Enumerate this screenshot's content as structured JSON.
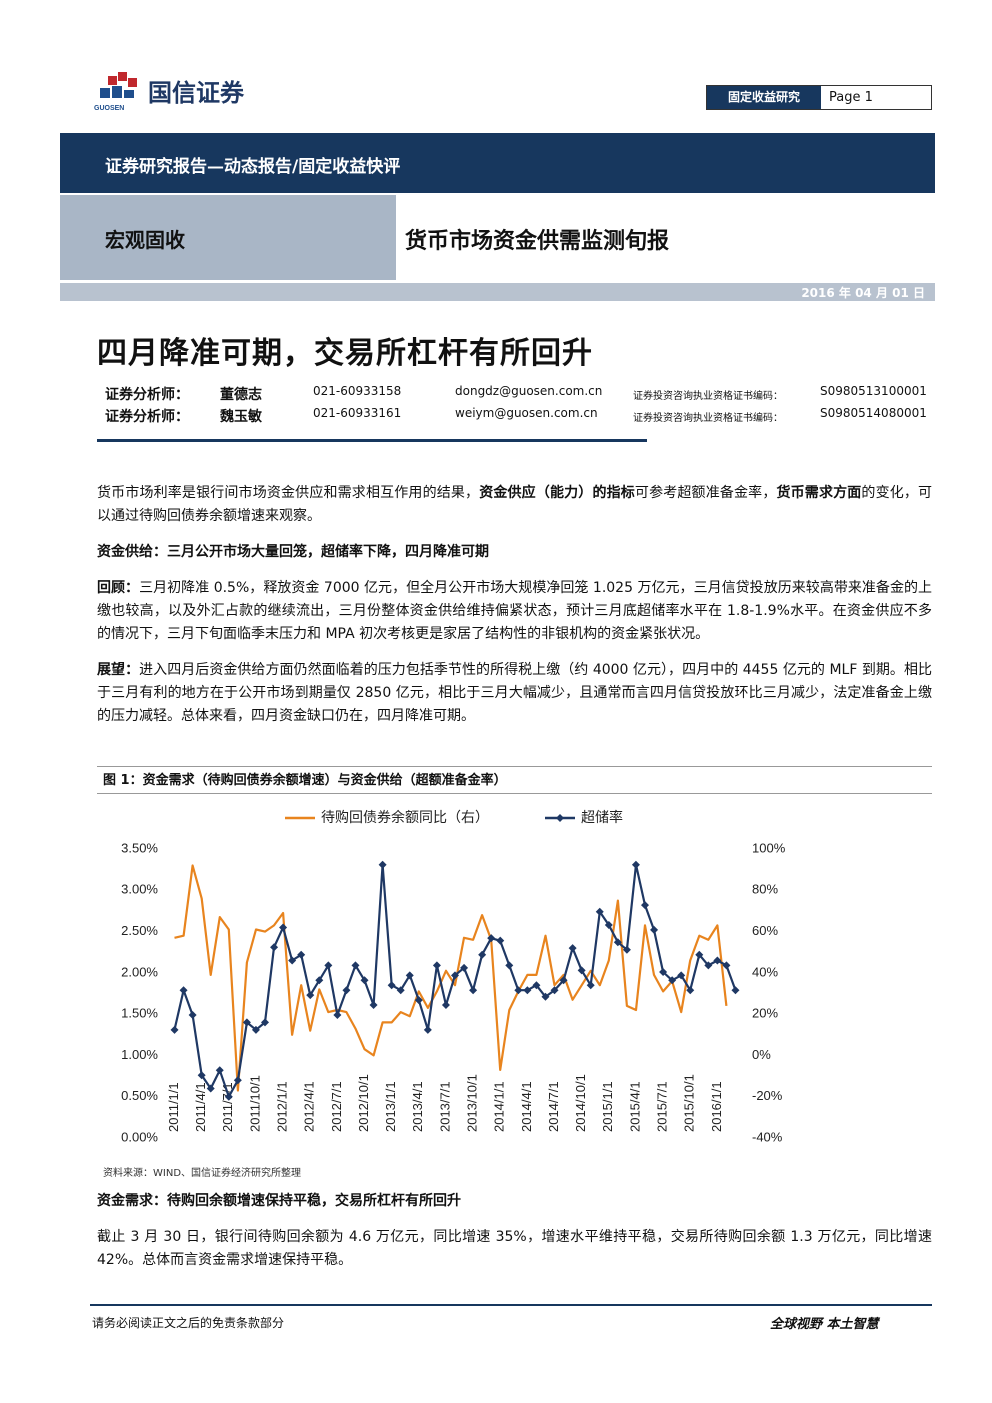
{
  "header": {
    "logo_text": "国信证券",
    "logo_en": "GUOSEN",
    "section": "固定收益研究",
    "page": "Page 1"
  },
  "banner": "证券研究报告—动态报告/固定收益快评",
  "category": "宏观固收",
  "report_name": "货币市场资金供需监测旬报",
  "date": "2016 年 04 月 01 日",
  "title": "四月降准可期，交易所杠杆有所回升",
  "analysts": [
    {
      "role": "证券分析师：",
      "name": "董德志",
      "phone": "021-60933158",
      "email": "dongdz@guosen.com.cn",
      "cert_label": "证券投资咨询执业资格证书编码：",
      "cert": "S0980513100001"
    },
    {
      "role": "证券分析师：",
      "name": "魏玉敏",
      "phone": "021-60933161",
      "email": "weiym@guosen.com.cn",
      "cert_label": "证券投资咨询执业资格证书编码：",
      "cert": "S0980514080001"
    }
  ],
  "body": [
    {
      "runs": [
        {
          "text": "货币市场利率是银行间市场资金供应和需求相互作用的结果，",
          "bold": false
        },
        {
          "text": "资金供应（能力）的指标",
          "bold": true
        },
        {
          "text": "可参考超额准备金率，",
          "bold": false
        },
        {
          "text": "货币需求方面",
          "bold": true
        },
        {
          "text": "的变化，可以通过待购回债券余额增速来观察。",
          "bold": false
        }
      ]
    },
    {
      "runs": [
        {
          "text": "资金供给：三月公开市场大量回笼，超储率下降，四月降准可期",
          "bold": true
        }
      ]
    },
    {
      "runs": [
        {
          "text": "回顾：",
          "bold": true
        },
        {
          "text": "三月初降准 0.5%，释放资金 7000 亿元，但全月公开市场大规模净回笼 1.025 万亿元，三月信贷投放历来较高带来准备金的上缴也较高，以及外汇占款的继续流出，三月份整体资金供给维持偏紧状态，预计三月底超储率水平在 1.8-1.9%水平。在资金供应不多的情况下，三月下旬面临季末压力和 MPA 初次考核更是家居了结构性的非银机构的资金紧张状况。",
          "bold": false
        }
      ]
    },
    {
      "runs": [
        {
          "text": "展望：",
          "bold": true
        },
        {
          "text": "进入四月后资金供给方面仍然面临着的压力包括季节性的所得税上缴（约 4000 亿元），四月中的 4455 亿元的 MLF 到期。相比于三月有利的地方在于公开市场到期量仅 2850 亿元，相比于三月大幅减少，且通常而言四月信贷投放环比三月减少，法定准备金上缴的压力减轻。总体来看，四月资金缺口仍在，四月降准可期。",
          "bold": false
        }
      ]
    }
  ],
  "body_after": [
    {
      "runs": [
        {
          "text": "资金需求：待购回余额增速保持平稳，交易所杠杆有所回升",
          "bold": true
        }
      ]
    },
    {
      "runs": [
        {
          "text": "截止 3 月 30 日，银行间待购回余额为 4.6 万亿元，同比增速 35%，增速水平维持平稳，交易所待购回余额 1.3 万亿元，同比增速 42%。总体而言资金需求增速保持平稳。",
          "bold": false
        }
      ]
    }
  ],
  "chart_data": {
    "type": "line",
    "title": "图 1：资金需求（待购回债券余额增速）与资金供给（超额准备金率）",
    "source": "资料来源：WIND、国信证券经济研究所整理",
    "categories": [
      "2011/1/1",
      null,
      null,
      "2011/4/1",
      null,
      null,
      "2011/7/1",
      null,
      null,
      "2011/10/1",
      null,
      null,
      "2012/1/1",
      null,
      null,
      "2012/4/1",
      null,
      null,
      "2012/7/1",
      null,
      null,
      "2012/10/1",
      null,
      null,
      "2013/1/1",
      null,
      null,
      "2013/4/1",
      null,
      null,
      "2013/7/1",
      null,
      null,
      "2013/10/1",
      null,
      null,
      "2014/1/1",
      null,
      null,
      "2014/4/1",
      null,
      null,
      "2014/7/1",
      null,
      null,
      "2014/10/1",
      null,
      null,
      "2015/1/1",
      null,
      null,
      "2015/4/1",
      null,
      null,
      "2015/7/1",
      null,
      null,
      "2015/10/1",
      null,
      null,
      "2016/1/1",
      null,
      null
    ],
    "series": [
      {
        "name": "待购回债券余额同比（右）",
        "color": "#e8841e",
        "axis": "y2",
        "values": [
          57,
          58,
          92,
          76,
          39,
          67,
          61,
          -17,
          45,
          61,
          60,
          63,
          69,
          10,
          34,
          12,
          32,
          21,
          22,
          21,
          13,
          3,
          0,
          16,
          16,
          21,
          19,
          31,
          23,
          31,
          41,
          34,
          57,
          56,
          68,
          56,
          -7,
          22,
          31,
          39,
          39,
          58,
          34,
          39,
          27,
          34,
          41,
          34,
          46,
          75,
          24,
          22,
          63,
          39,
          31,
          36,
          21,
          46,
          58,
          56,
          63,
          24,
          null
        ]
      },
      {
        "name": "超储率",
        "color": "#1f3864",
        "marker": "diamond",
        "values": [
          1.31,
          1.79,
          1.49,
          0.76,
          0.6,
          0.82,
          0.5,
          0.7,
          1.4,
          1.31,
          1.4,
          2.31,
          2.55,
          2.15,
          2.22,
          1.73,
          1.91,
          2.09,
          1.49,
          1.79,
          2.09,
          1.91,
          1.61,
          3.31,
          1.85,
          1.79,
          1.97,
          1.67,
          1.31,
          2.09,
          1.61,
          1.97,
          2.06,
          1.79,
          2.22,
          2.42,
          2.39,
          2.09,
          1.79,
          1.79,
          1.85,
          1.71,
          1.79,
          1.91,
          2.3,
          2.03,
          1.85,
          2.74,
          2.58,
          2.37,
          2.28,
          3.31,
          2.82,
          2.52,
          2.01,
          1.91,
          1.97,
          1.79,
          2.22,
          2.09,
          2.15,
          2.09,
          1.79
        ]
      }
    ],
    "ylim": [
      0,
      3.5
    ],
    "yticks": [
      {
        "value": 0,
        "label": "0.00%"
      },
      {
        "value": 0.5,
        "label": "0.50%"
      },
      {
        "value": 1,
        "label": "1.00%"
      },
      {
        "value": 1.5,
        "label": "1.50%"
      },
      {
        "value": 2,
        "label": "2.00%"
      },
      {
        "value": 2.5,
        "label": "2.50%"
      },
      {
        "value": 3,
        "label": "3.00%"
      },
      {
        "value": 3.5,
        "label": "3.50%"
      }
    ],
    "y2lim": [
      -40,
      100
    ],
    "y2ticks": [
      {
        "value": -40,
        "label": "-40%"
      },
      {
        "value": -20,
        "label": "-20%"
      },
      {
        "value": 0,
        "label": "0%"
      },
      {
        "value": 20,
        "label": "20%"
      },
      {
        "value": 40,
        "label": "40%"
      },
      {
        "value": 60,
        "label": "60%"
      },
      {
        "value": 80,
        "label": "80%"
      },
      {
        "value": 100,
        "label": "100%"
      }
    ],
    "legend": "top"
  },
  "footer": {
    "left": "请务必阅读正文之后的免责条款部分",
    "right": "全球视野 本土智慧"
  }
}
